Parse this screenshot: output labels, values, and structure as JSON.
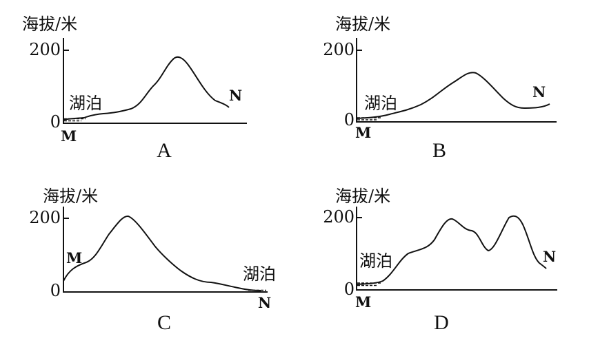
{
  "panels": [
    {
      "id": "A",
      "y_label": "海拔/米",
      "tick_max": "200",
      "tick_zero": "0",
      "lake_label": "湖泊",
      "point_start": "M",
      "point_end": "N",
      "letter": "A"
    },
    {
      "id": "B",
      "y_label": "海拔/米",
      "tick_max": "200",
      "tick_zero": "0",
      "lake_label": "湖泊",
      "point_start": "M",
      "point_end": "N",
      "letter": "B"
    },
    {
      "id": "C",
      "y_label": "海拔/米",
      "tick_max": "200",
      "tick_zero": "0",
      "lake_label": "湖泊",
      "point_start": "M",
      "point_end": "N",
      "letter": "C"
    },
    {
      "id": "D",
      "y_label": "海拔/米",
      "tick_max": "200",
      "tick_zero": "0",
      "lake_label": "湖泊",
      "point_start": "M",
      "point_end": "N",
      "letter": "D"
    }
  ]
}
